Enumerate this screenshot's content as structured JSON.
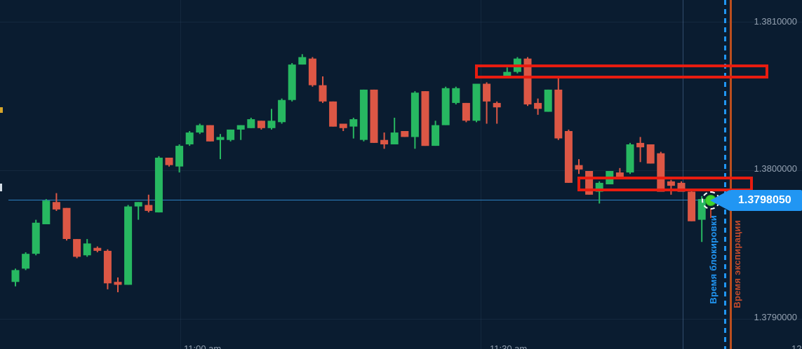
{
  "app": {
    "view": "trading-candlestick-chart"
  },
  "colors": {
    "background": "#0a1c30",
    "bullish": "#27b861",
    "bearish": "#dc5745",
    "annotation_red": "#e81c10",
    "current_price_line": "#2e86c8",
    "badge_blue": "#2196f3",
    "expiry_orange": "#bc4e1e",
    "axis_text": "#93a0b0",
    "marker_dot_green": "#3fd32e"
  },
  "y_axis": {
    "labels": [
      "1.3810000",
      "1.3800000",
      "1.3790000"
    ]
  },
  "x_axis": {
    "labels": [
      "11:00 am",
      "11:30 am",
      "12"
    ]
  },
  "current_price": {
    "value": "1.3798050"
  },
  "markers": {
    "lock_label": "Время блокировки",
    "expiry_label": "Время экспирации"
  },
  "chart_data": {
    "type": "candlestick",
    "title": "",
    "ylabel": "",
    "y_ticks": [
      1.381,
      1.38,
      1.379
    ],
    "ylim": [
      1.3787,
      1.3812
    ],
    "grid": true,
    "legend_position": "none",
    "current_price": 1.379805,
    "annotations": {
      "resistance_zones": [
        {
          "price_from": 1.38063,
          "price_to": 1.38072
        },
        {
          "price_from": 1.37986,
          "price_to": 1.37996
        }
      ],
      "lock_time_line": "vertical-dashed-blue",
      "expiry_time_line": "vertical-solid-orange"
    },
    "columns": [
      "open",
      "high",
      "low",
      "close"
    ],
    "candles": [
      [
        1.37925,
        1.37934,
        1.37922,
        1.37933
      ],
      [
        1.37934,
        1.37945,
        1.37933,
        1.37944
      ],
      [
        1.37944,
        1.37967,
        1.37943,
        1.37965
      ],
      [
        1.37964,
        1.37981,
        1.37964,
        1.3798
      ],
      [
        1.37979,
        1.37985,
        1.37973,
        1.37974
      ],
      [
        1.37975,
        1.37975,
        1.37953,
        1.37954
      ],
      [
        1.37954,
        1.37954,
        1.37941,
        1.37942
      ],
      [
        1.37943,
        1.37954,
        1.37942,
        1.37951
      ],
      [
        1.37948,
        1.37949,
        1.37945,
        1.37946
      ],
      [
        1.37946,
        1.37947,
        1.3792,
        1.37924
      ],
      [
        1.37925,
        1.37928,
        1.37918,
        1.37923
      ],
      [
        1.37923,
        1.37977,
        1.37923,
        1.37976
      ],
      [
        1.37976,
        1.37979,
        1.37967,
        1.37979
      ],
      [
        1.37977,
        1.37984,
        1.37972,
        1.37973
      ],
      [
        1.37972,
        1.3801,
        1.37972,
        1.38009
      ],
      [
        1.38009,
        1.38009,
        1.38003,
        1.38004
      ],
      [
        1.38003,
        1.38018,
        1.37999,
        1.38017
      ],
      [
        1.38018,
        1.38027,
        1.38017,
        1.38026
      ],
      [
        1.38026,
        1.38032,
        1.38025,
        1.38031
      ],
      [
        1.38031,
        1.38031,
        1.3802,
        1.3802
      ],
      [
        1.38021,
        1.38025,
        1.38008,
        1.38023
      ],
      [
        1.38021,
        1.38028,
        1.3802,
        1.38028
      ],
      [
        1.38028,
        1.38031,
        1.38021,
        1.38031
      ],
      [
        1.38029,
        1.38036,
        1.38029,
        1.38035
      ],
      [
        1.38034,
        1.38034,
        1.38028,
        1.38029
      ],
      [
        1.38029,
        1.38042,
        1.38028,
        1.38034
      ],
      [
        1.38033,
        1.38049,
        1.38032,
        1.38048
      ],
      [
        1.38048,
        1.38073,
        1.38047,
        1.38072
      ],
      [
        1.38072,
        1.38079,
        1.38072,
        1.38077
      ],
      [
        1.38076,
        1.38077,
        1.38057,
        1.38058
      ],
      [
        1.38058,
        1.38064,
        1.38046,
        1.38047
      ],
      [
        1.38047,
        1.38047,
        1.3803,
        1.3803
      ],
      [
        1.38032,
        1.38032,
        1.38027,
        1.38029
      ],
      [
        1.3803,
        1.38036,
        1.38022,
        1.38035
      ],
      [
        1.38021,
        1.38055,
        1.3802,
        1.38055
      ],
      [
        1.38055,
        1.38055,
        1.38019,
        1.38019
      ],
      [
        1.38021,
        1.38026,
        1.38015,
        1.38018
      ],
      [
        1.38018,
        1.38036,
        1.38018,
        1.38026
      ],
      [
        1.38027,
        1.38027,
        1.38023,
        1.38023
      ],
      [
        1.38023,
        1.38054,
        1.38015,
        1.38053
      ],
      [
        1.38054,
        1.38054,
        1.38017,
        1.38017
      ],
      [
        1.38017,
        1.38034,
        1.38017,
        1.38031
      ],
      [
        1.38031,
        1.38057,
        1.38031,
        1.38056
      ],
      [
        1.38046,
        1.38057,
        1.38045,
        1.38056
      ],
      [
        1.38046,
        1.38046,
        1.38033,
        1.38034
      ],
      [
        1.38034,
        1.38059,
        1.38033,
        1.38059
      ],
      [
        1.38059,
        1.3806,
        1.38032,
        1.38047
      ],
      [
        1.38046,
        1.38047,
        1.38032,
        1.38043
      ],
      [
        1.38064,
        1.3807,
        1.38063,
        1.38067
      ],
      [
        1.38067,
        1.38077,
        1.38066,
        1.38076
      ],
      [
        1.38076,
        1.38077,
        1.38044,
        1.38045
      ],
      [
        1.38046,
        1.38049,
        1.38038,
        1.38042
      ],
      [
        1.3804,
        1.38055,
        1.3804,
        1.38055
      ],
      [
        1.38055,
        1.38063,
        1.38021,
        1.38022
      ],
      [
        1.38027,
        1.38028,
        1.37992,
        1.37992
      ],
      [
        1.38004,
        1.38008,
        1.37998,
        1.38001
      ],
      [
        1.38,
        1.38,
        1.37984,
        1.37984
      ],
      [
        1.37986,
        1.37993,
        1.37978,
        1.37992
      ],
      [
        1.37991,
        1.38,
        1.37991,
        1.38
      ],
      [
        1.37999,
        1.38002,
        1.37995,
        1.37996
      ],
      [
        1.37999,
        1.38019,
        1.37998,
        1.38018
      ],
      [
        1.38019,
        1.38023,
        1.38006,
        1.38016
      ],
      [
        1.38018,
        1.38018,
        1.38005,
        1.38005
      ],
      [
        1.38012,
        1.38013,
        1.37986,
        1.37986
      ],
      [
        1.37993,
        1.37994,
        1.37984,
        1.3799
      ],
      [
        1.37992,
        1.37993,
        1.37986,
        1.37986
      ],
      [
        1.37986,
        1.37987,
        1.37966,
        1.37966
      ],
      [
        1.37967,
        1.37983,
        1.37952,
        1.37981
      ]
    ]
  }
}
